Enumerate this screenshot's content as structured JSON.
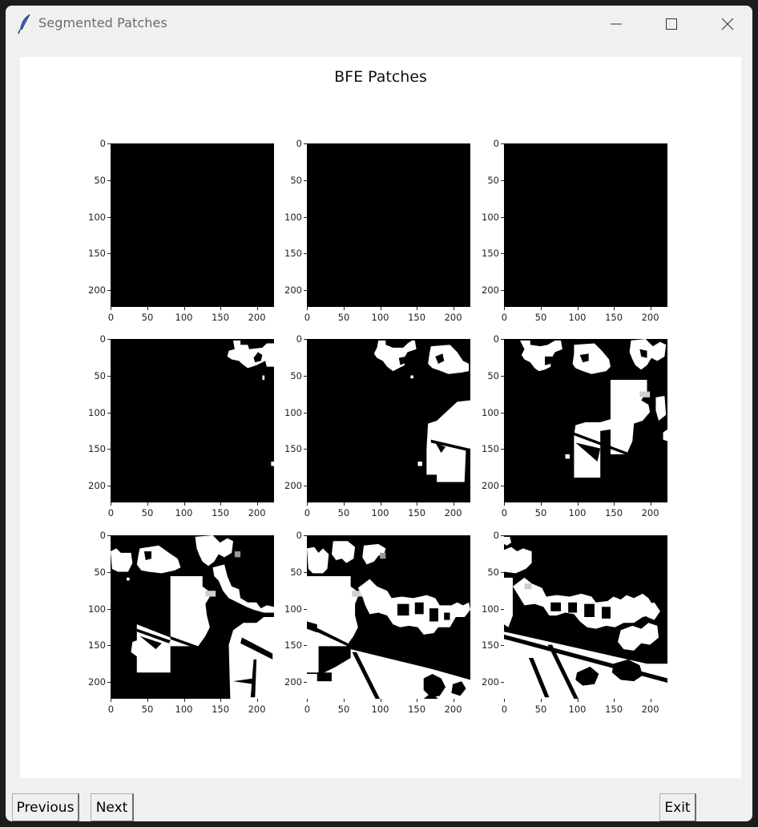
{
  "window": {
    "title": "Segmented Patches",
    "app_icon": "feather-icon",
    "controls": [
      "minimize-icon",
      "maximize-icon",
      "close-icon"
    ]
  },
  "figure": {
    "title": "BFE Patches",
    "grid": "3x3",
    "colormap": "grayscale (black background, white segments)"
  },
  "axes": {
    "x_tick_labels": [
      "0",
      "50",
      "100",
      "150",
      "200"
    ],
    "y_tick_labels": [
      "0",
      "50",
      "100",
      "150",
      "200"
    ]
  },
  "buttons": {
    "previous": "Previous",
    "next": "Next",
    "exit": "Exit"
  }
}
